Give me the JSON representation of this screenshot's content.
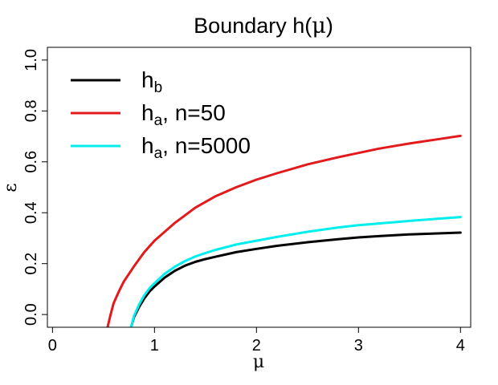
{
  "chart_data": {
    "type": "line",
    "title": {
      "prefix": "Boundary h(",
      "symbol": "μ",
      "suffix": ")"
    },
    "xlabel": "μ",
    "ylabel": "ε",
    "xlim": [
      -0.05,
      4.1
    ],
    "ylim": [
      -0.05,
      1.05
    ],
    "x_ticks": [
      0,
      1,
      2,
      3,
      4
    ],
    "x_tick_labels": [
      "0",
      "1",
      "2",
      "3",
      "4"
    ],
    "y_ticks": [
      0.0,
      0.2,
      0.4,
      0.6,
      0.8,
      1.0
    ],
    "y_tick_labels": [
      "0.0",
      "0.2",
      "0.4",
      "0.6",
      "0.8",
      "1.0"
    ],
    "grid": false,
    "legend_position": "top-left",
    "series": [
      {
        "name": "h_b",
        "legend": {
          "main": "h",
          "sub": "b",
          "rest": ""
        },
        "color": "#000000",
        "x": [
          0.77,
          0.8,
          0.85,
          0.9,
          0.95,
          1.0,
          1.1,
          1.2,
          1.3,
          1.4,
          1.5,
          1.6,
          1.8,
          2.0,
          2.2,
          2.5,
          2.8,
          3.0,
          3.2,
          3.5,
          4.0
        ],
        "y": [
          -0.05,
          -0.01,
          0.03,
          0.063,
          0.09,
          0.11,
          0.145,
          0.172,
          0.192,
          0.207,
          0.218,
          0.227,
          0.245,
          0.258,
          0.27,
          0.284,
          0.296,
          0.303,
          0.308,
          0.315,
          0.322
        ]
      },
      {
        "name": "h_a, n=50",
        "legend": {
          "main": "h",
          "sub": "a",
          "rest": ", n=50"
        },
        "color": "#e31a1c",
        "x": [
          0.54,
          0.57,
          0.6,
          0.65,
          0.7,
          0.8,
          0.9,
          1.0,
          1.2,
          1.4,
          1.6,
          1.8,
          2.0,
          2.2,
          2.5,
          2.8,
          3.0,
          3.2,
          3.5,
          3.8,
          4.0
        ],
        "y": [
          -0.05,
          0.0,
          0.045,
          0.09,
          0.13,
          0.19,
          0.245,
          0.29,
          0.36,
          0.42,
          0.465,
          0.5,
          0.53,
          0.555,
          0.59,
          0.618,
          0.635,
          0.652,
          0.672,
          0.69,
          0.702
        ]
      },
      {
        "name": "h_a, n=5000",
        "legend": {
          "main": "h",
          "sub": "a",
          "rest": ", n=5000"
        },
        "color": "#00eeee",
        "x": [
          0.77,
          0.8,
          0.85,
          0.9,
          0.95,
          1.0,
          1.1,
          1.2,
          1.3,
          1.4,
          1.5,
          1.6,
          1.8,
          2.0,
          2.2,
          2.5,
          2.8,
          3.0,
          3.2,
          3.5,
          4.0
        ],
        "y": [
          -0.05,
          -0.005,
          0.04,
          0.075,
          0.103,
          0.123,
          0.16,
          0.188,
          0.21,
          0.228,
          0.242,
          0.254,
          0.275,
          0.29,
          0.305,
          0.325,
          0.342,
          0.351,
          0.358,
          0.368,
          0.383
        ]
      }
    ]
  }
}
